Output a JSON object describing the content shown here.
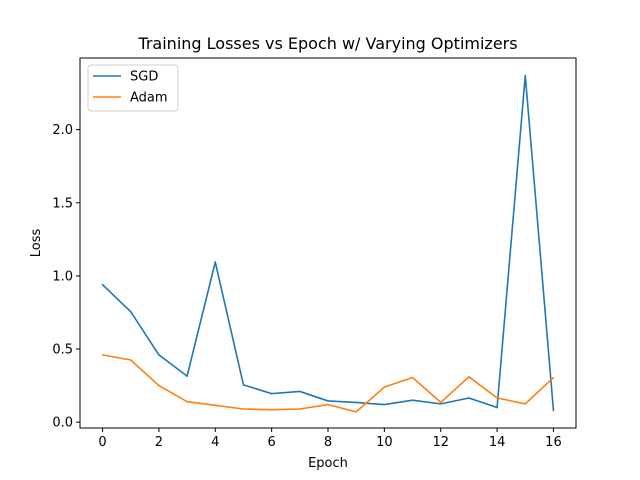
{
  "chart_data": {
    "type": "line",
    "title": "Training Losses vs Epoch w/ Varying Optimizers",
    "xlabel": "Epoch",
    "ylabel": "Loss",
    "xlim": [
      -0.8,
      16.8
    ],
    "ylim": [
      -0.04,
      2.49
    ],
    "xticks": [
      0,
      2,
      4,
      6,
      8,
      10,
      12,
      14,
      16
    ],
    "yticks": [
      0.0,
      0.5,
      1.0,
      1.5,
      2.0
    ],
    "ytick_labels": [
      "0.0",
      "0.5",
      "1.0",
      "1.5",
      "2.0"
    ],
    "legend_position": "upper-left",
    "grid": false,
    "x": [
      0,
      1,
      2,
      3,
      4,
      5,
      6,
      7,
      8,
      9,
      10,
      11,
      12,
      13,
      14,
      15,
      16
    ],
    "series": [
      {
        "name": "SGD",
        "color": "#1f77b4",
        "values": [
          0.94,
          0.755,
          0.46,
          0.315,
          1.095,
          0.255,
          0.195,
          0.21,
          0.145,
          0.135,
          0.12,
          0.15,
          0.125,
          0.165,
          0.1,
          2.37,
          0.08
        ]
      },
      {
        "name": "Adam",
        "color": "#ff7f0e",
        "values": [
          0.46,
          0.425,
          0.25,
          0.14,
          0.115,
          0.09,
          0.085,
          0.09,
          0.12,
          0.07,
          0.24,
          0.305,
          0.135,
          0.31,
          0.165,
          0.125,
          0.305
        ]
      }
    ]
  }
}
